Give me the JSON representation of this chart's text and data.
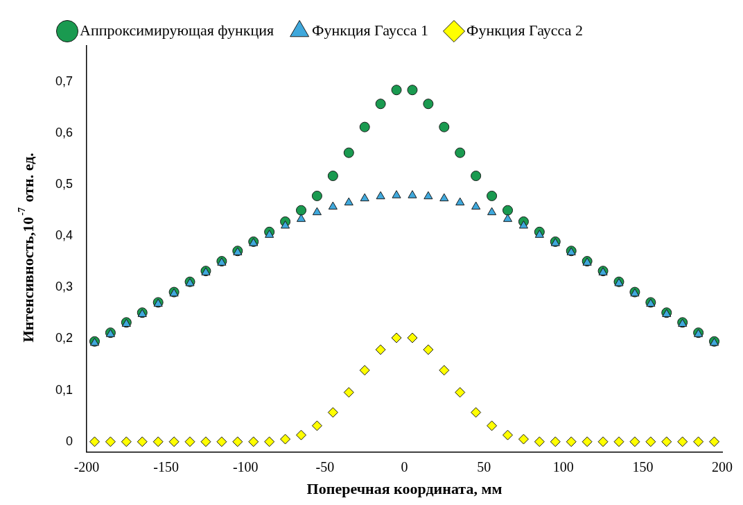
{
  "chart_data": {
    "type": "scatter",
    "xlabel": "Поперечная координата, мм",
    "ylabel": "Интенсивность,10$^{-7}$ отн. ед.",
    "x": [
      -195,
      -185,
      -175,
      -165,
      -155,
      -145,
      -135,
      -125,
      -115,
      -105,
      -95,
      -85,
      -75,
      -65,
      -55,
      -45,
      -35,
      -25,
      -15,
      -5,
      5,
      15,
      25,
      35,
      45,
      55,
      65,
      75,
      85,
      95,
      105,
      115,
      125,
      135,
      145,
      155,
      165,
      175,
      185,
      195
    ],
    "series": [
      {
        "name": "Аппроксимирующая функция",
        "color": "#1a9a50",
        "marker": "circle",
        "values": [
          0.195,
          0.212,
          0.232,
          0.251,
          0.271,
          0.291,
          0.311,
          0.332,
          0.351,
          0.371,
          0.389,
          0.408,
          0.428,
          0.45,
          0.478,
          0.517,
          0.562,
          0.612,
          0.657,
          0.684,
          0.684,
          0.657,
          0.612,
          0.562,
          0.517,
          0.478,
          0.45,
          0.428,
          0.408,
          0.389,
          0.371,
          0.351,
          0.332,
          0.311,
          0.291,
          0.271,
          0.251,
          0.232,
          0.212,
          0.195
        ]
      },
      {
        "name": "Функция Гаусса 1",
        "color": "#3fa8dc",
        "marker": "triangle",
        "values": [
          0.192,
          0.209,
          0.229,
          0.248,
          0.268,
          0.288,
          0.308,
          0.329,
          0.348,
          0.368,
          0.386,
          0.402,
          0.42,
          0.433,
          0.446,
          0.457,
          0.465,
          0.473,
          0.477,
          0.479,
          0.479,
          0.477,
          0.473,
          0.465,
          0.457,
          0.446,
          0.433,
          0.42,
          0.402,
          0.386,
          0.368,
          0.348,
          0.329,
          0.308,
          0.288,
          0.268,
          0.248,
          0.229,
          0.209,
          0.192
        ]
      },
      {
        "name": "Функция Гаусса 2",
        "color": "#ffff00",
        "marker": "diamond",
        "values": [
          0,
          0,
          0,
          0,
          0,
          0,
          0,
          0,
          0,
          0,
          0,
          0,
          0.005,
          0.013,
          0.031,
          0.057,
          0.096,
          0.139,
          0.179,
          0.202,
          0.202,
          0.179,
          0.139,
          0.096,
          0.057,
          0.031,
          0.013,
          0.005,
          0,
          0,
          0,
          0,
          0,
          0,
          0,
          0,
          0,
          0,
          0,
          0
        ]
      }
    ],
    "xlim": [
      -200,
      200
    ],
    "xticks": [
      -200,
      -150,
      -100,
      -50,
      0,
      50,
      100,
      150,
      200
    ],
    "ylim": [
      -0.02,
      0.77
    ],
    "yticks": [
      {
        "value": 0,
        "label": "0"
      },
      {
        "value": 0.1,
        "label": "0,1"
      },
      {
        "value": 0.2,
        "label": "0,2"
      },
      {
        "value": 0.3,
        "label": "0,3"
      },
      {
        "value": 0.4,
        "label": "0,4"
      },
      {
        "value": 0.5,
        "label": "0,5"
      },
      {
        "value": 0.6,
        "label": "0,6"
      },
      {
        "value": 0.7,
        "label": "0,7"
      }
    ],
    "grid": false,
    "legend": "top"
  }
}
